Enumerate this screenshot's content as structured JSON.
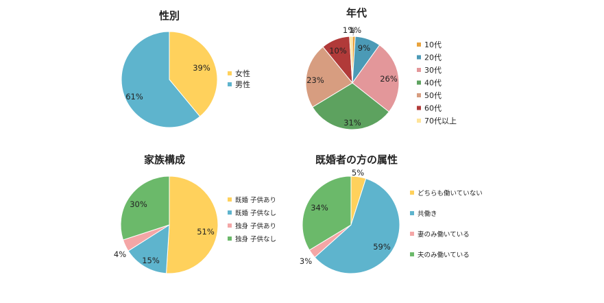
{
  "chart_data": [
    {
      "type": "pie",
      "title": "性別",
      "categories": [
        "女性",
        "男性"
      ],
      "values": [
        39,
        61
      ],
      "labels": [
        "39%",
        "61%"
      ],
      "colors": [
        "#FFD15C",
        "#5EB4CD"
      ],
      "legend": "right"
    },
    {
      "type": "pie",
      "title": "年代",
      "categories": [
        "10代",
        "20代",
        "30代",
        "40代",
        "50代",
        "60代",
        "70代以上"
      ],
      "values": [
        1,
        9,
        26,
        31,
        23,
        10,
        1
      ],
      "labels": [
        "1%",
        "9%",
        "26%",
        "31%",
        "23%",
        "10%",
        "1%"
      ],
      "colors": [
        "#E8A33D",
        "#4B9AB6",
        "#E3979A",
        "#5DA25F",
        "#D79D80",
        "#B13A39",
        "#FFE49A"
      ],
      "legend": "right"
    },
    {
      "type": "pie",
      "title": "家族構成",
      "categories": [
        "既婚 子供あり",
        "既婚 子供なし",
        "独身 子供あり",
        "独身 子供なし"
      ],
      "values": [
        51,
        15,
        4,
        30
      ],
      "labels": [
        "51%",
        "15%",
        "4%",
        "30%"
      ],
      "colors": [
        "#FFD15C",
        "#5EB4CD",
        "#F4A6A6",
        "#6BB96A"
      ],
      "legend": "right"
    },
    {
      "type": "pie",
      "title": "既婚者の方の属性",
      "categories": [
        "どちらも働いていない",
        "共働き",
        "妻のみ働いている",
        "夫のみ働いている"
      ],
      "values": [
        5,
        59,
        3,
        34
      ],
      "labels": [
        "5%",
        "59%",
        "3%",
        "34%"
      ],
      "colors": [
        "#FFD15C",
        "#5EB4CD",
        "#F4A6A6",
        "#6BB96A"
      ],
      "legend": "right"
    }
  ]
}
